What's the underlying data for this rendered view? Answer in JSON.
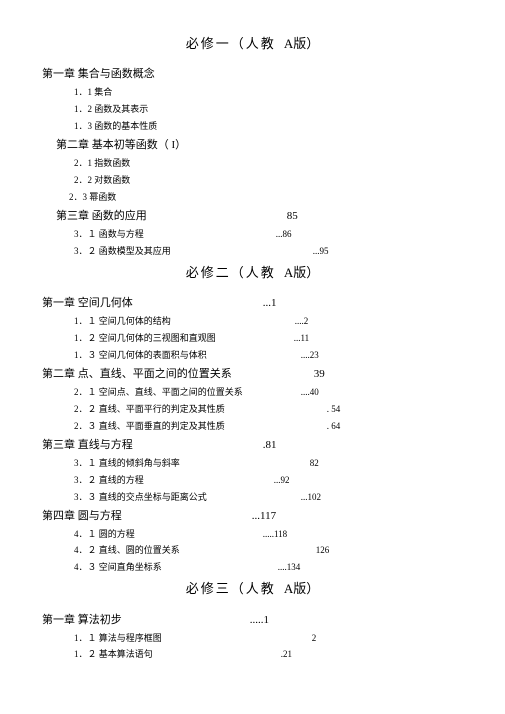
{
  "volumes": [
    {
      "title_left": "必修一（人教",
      "title_right": "A版）",
      "chapters": [
        {
          "label": "第一章   集合与函数概念",
          "page": "",
          "indent": 0,
          "sections": [
            {
              "label": "1．1   集合",
              "page": ""
            },
            {
              "label": "1．2   函数及其表示",
              "page": ""
            },
            {
              "label": "1．3   函数的基本性质",
              "page": ""
            }
          ]
        },
        {
          "label": "第二章   基本初等函数（ I）",
          "page": "",
          "indent": 14,
          "sections": [
            {
              "label": "2．1   指数函数",
              "page": ""
            },
            {
              "label": "2．2   对数函数",
              "page": ""
            },
            {
              "label": "2．3   幂函数",
              "page": "",
              "back": 5
            }
          ]
        },
        {
          "label": "第三章   函数的应用",
          "page": "85",
          "gap": 140,
          "indent": 14,
          "sections": [
            {
              "label": "3．１ 函数与方程",
              "page": "...86",
              "gap": 132
            },
            {
              "label": "3．２ 函数模型及其应用",
              "page": "...95",
              "gap": 142
            }
          ]
        }
      ]
    },
    {
      "title_left": "必修二（人教",
      "title_right": "A版）",
      "chapters": [
        {
          "label": "第一章   空间几何体",
          "page": "...1",
          "gap": 130,
          "indent": 0,
          "sections": [
            {
              "label": "1．１ 空间几何体的结构",
              "page": "....2",
              "gap": 124
            },
            {
              "label": "1．２ 空间几何体的三视图和直观图",
              "page": "...11",
              "gap": 78
            },
            {
              "label": "1．３ 空间几何体的表面积与体积",
              "page": "....23",
              "gap": 94
            }
          ]
        },
        {
          "label": "第二章   点、直线、平面之间的位置关系",
          "page": "39",
          "gap": 82,
          "indent": 0,
          "sections": [
            {
              "label": "2．１ 空间点、直线、平面之间的位置关系",
              "page": "....40",
              "gap": 58
            },
            {
              "label": "2．２ 直线、平面平行的判定及其性质",
              "page": ". 54",
              "gap": 102
            },
            {
              "label": "2．３ 直线、平面垂直的判定及其性质",
              "page": ". 64",
              "gap": 102
            }
          ]
        },
        {
          "label": "第三章   直线与方程",
          "page": ".81",
          "gap": 130,
          "indent": 0,
          "sections": [
            {
              "label": "3．１ 直线的倾斜角与斜率",
              "page": "82",
              "gap": 130
            },
            {
              "label": "3．２ 直线的方程",
              "page": "...92",
              "gap": 130
            },
            {
              "label": "3．３ 直线的交点坐标与距离公式",
              "page": "...102",
              "gap": 94
            }
          ]
        },
        {
          "label": "第四章   圆与方程",
          "page": "...117",
          "gap": 130,
          "indent": 0,
          "sections": [
            {
              "label": "4．１ 圆的方程",
              "page": ".....118",
              "gap": 128
            },
            {
              "label": "4．２ 直线、圆的位置关系",
              "page": "126",
              "gap": 136
            },
            {
              "label": "4．３ 空间直角坐标系",
              "page": "....134",
              "gap": 116
            }
          ]
        }
      ]
    },
    {
      "title_left": "必修三（人教",
      "title_right": "A版）",
      "chapters": [
        {
          "label": "第一章   算法初步",
          "page": ".....1",
          "gap": 128,
          "indent": 0,
          "sections": [
            {
              "label": "1．１ 算法与程序框图",
              "page": "2",
              "gap": 150
            },
            {
              "label": "1．２ 基本算法语句",
              "page": ".21",
              "gap": 128
            }
          ]
        }
      ]
    }
  ]
}
